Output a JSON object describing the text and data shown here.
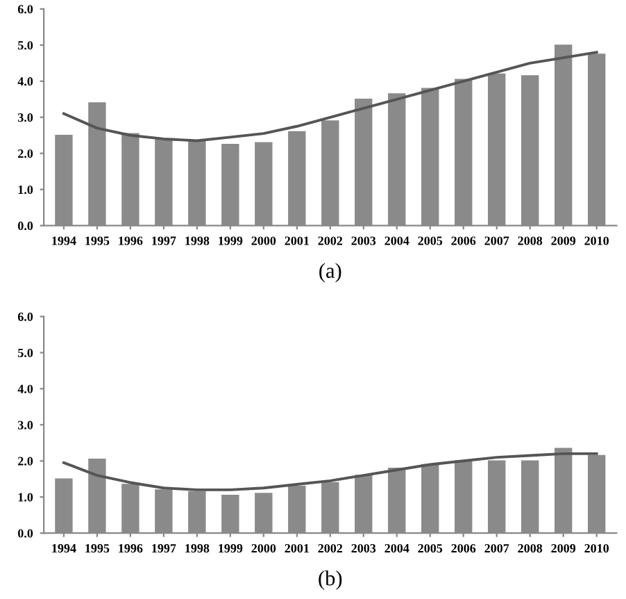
{
  "chart_data": [
    {
      "type": "bar",
      "xlabel": "(a)",
      "categories": [
        "1994",
        "1995",
        "1996",
        "1997",
        "1998",
        "1999",
        "2000",
        "2001",
        "2002",
        "2003",
        "2004",
        "2005",
        "2006",
        "2007",
        "2008",
        "2009",
        "2010"
      ],
      "series": [
        {
          "color": "#8a8a8a",
          "values": [
            2.5,
            3.4,
            2.55,
            2.4,
            2.35,
            2.25,
            2.3,
            2.6,
            2.9,
            3.5,
            3.65,
            3.8,
            4.05,
            4.2,
            4.15,
            5.0,
            4.75
          ]
        },
        {
          "type": "line",
          "color": "#555555",
          "values": [
            3.1,
            2.7,
            2.5,
            2.4,
            2.35,
            2.45,
            2.55,
            2.75,
            3.0,
            3.25,
            3.5,
            3.75,
            4.0,
            4.25,
            4.5,
            4.65,
            4.8
          ]
        }
      ],
      "ylim": [
        0,
        6
      ],
      "yticks": [
        {
          "value": 0,
          "label": "0.0"
        },
        {
          "value": 1,
          "label": "1.0"
        },
        {
          "value": 2,
          "label": "2.0"
        },
        {
          "value": 3,
          "label": "3.0"
        },
        {
          "value": 4,
          "label": "4.0"
        },
        {
          "value": 5,
          "label": "5.0"
        },
        {
          "value": 6,
          "label": "6.0"
        }
      ],
      "grid": false,
      "legend": false
    },
    {
      "type": "bar",
      "xlabel": "(b)",
      "categories": [
        "1994",
        "1995",
        "1996",
        "1997",
        "1998",
        "1999",
        "2000",
        "2001",
        "2002",
        "2003",
        "2004",
        "2005",
        "2006",
        "2007",
        "2008",
        "2009",
        "2010"
      ],
      "series": [
        {
          "color": "#8a8a8a",
          "values": [
            1.5,
            2.05,
            1.35,
            1.2,
            1.15,
            1.05,
            1.1,
            1.3,
            1.4,
            1.6,
            1.8,
            1.9,
            2.0,
            2.0,
            2.0,
            2.35,
            2.15
          ]
        },
        {
          "type": "line",
          "color": "#555555",
          "values": [
            1.95,
            1.6,
            1.4,
            1.25,
            1.2,
            1.2,
            1.25,
            1.35,
            1.45,
            1.6,
            1.75,
            1.9,
            2.0,
            2.1,
            2.15,
            2.2,
            2.2
          ]
        }
      ],
      "ylim": [
        0,
        6
      ],
      "yticks": [
        {
          "value": 0,
          "label": "0.0"
        },
        {
          "value": 1,
          "label": "1.0"
        },
        {
          "value": 2,
          "label": "2.0"
        },
        {
          "value": 3,
          "label": "3.0"
        },
        {
          "value": 4,
          "label": "4.0"
        },
        {
          "value": 5,
          "label": "5.0"
        },
        {
          "value": 6,
          "label": "6.0"
        }
      ],
      "grid": false,
      "legend": false
    }
  ]
}
